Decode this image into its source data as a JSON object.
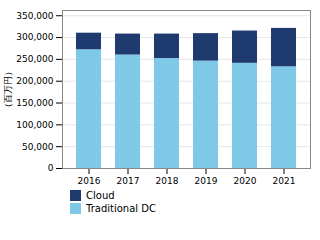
{
  "chart_data": {
    "type": "bar",
    "stacked": true,
    "ylabel": "（百万円）",
    "categories": [
      "2016",
      "2017",
      "2018",
      "2019",
      "2020",
      "2021"
    ],
    "series": [
      {
        "name": "Traditional DC",
        "color": "#7ec8e8",
        "values": [
          272000,
          260000,
          252000,
          246000,
          241000,
          233000
        ]
      },
      {
        "name": "Cloud",
        "color": "#1e3a6e",
        "values": [
          38000,
          48000,
          56000,
          63000,
          74000,
          88000
        ]
      }
    ],
    "ylim": [
      0,
      362000
    ],
    "yticks": [
      0,
      {
        "value": 50000,
        "label": "50,000"
      },
      {
        "value": 100000,
        "label": "100,000"
      },
      {
        "value": 150000,
        "label": "150,000"
      },
      {
        "value": 200000,
        "label": "200,000"
      },
      {
        "value": 250000,
        "label": "250,000"
      },
      {
        "value": 300000,
        "label": "300,000"
      },
      {
        "value": 350000,
        "label": "350,000"
      }
    ],
    "grid": true,
    "legend": "bottom"
  }
}
